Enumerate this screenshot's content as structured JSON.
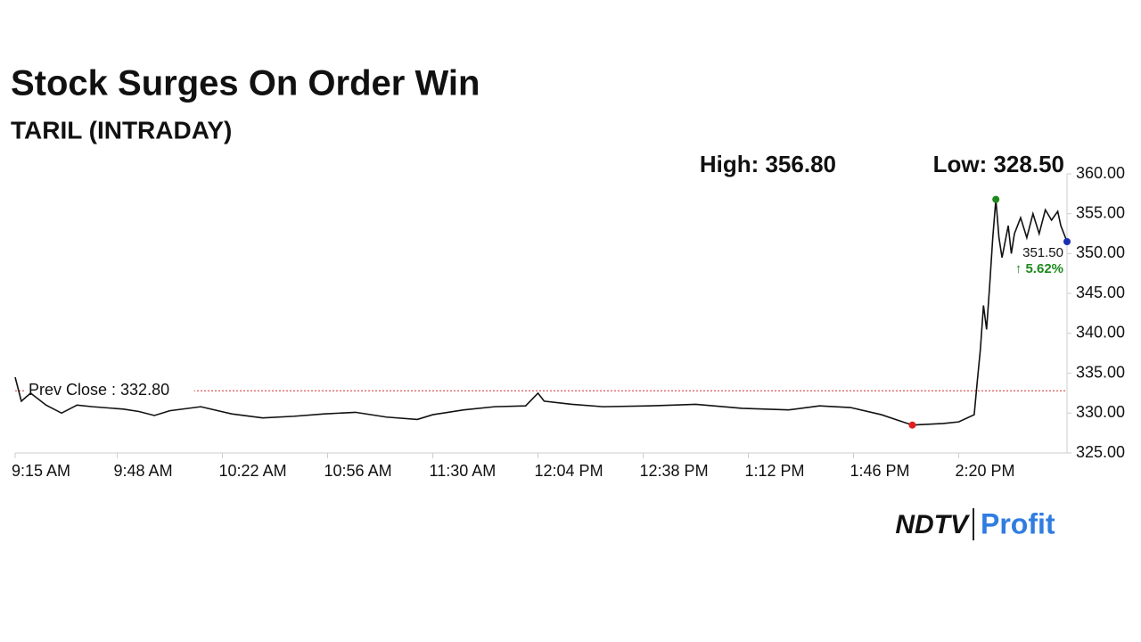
{
  "chart_data": {
    "type": "line",
    "title": "Stock Surges On Order Win",
    "subtitle": "TARIL (INTRADAY)",
    "stats": [
      "High: 356.80",
      "Low: 328.50"
    ],
    "color": "#111111",
    "x": [
      555,
      557,
      560,
      565,
      570,
      575,
      580,
      590,
      595,
      600,
      605,
      615,
      625,
      635,
      645,
      655,
      665,
      675,
      685,
      690,
      700,
      710,
      720,
      724,
      726,
      735,
      745,
      760,
      775,
      790,
      805,
      815,
      825,
      835,
      845,
      855,
      860,
      865,
      866,
      867,
      868,
      869,
      870,
      871,
      872,
      873,
      874,
      876,
      877,
      878,
      880,
      882,
      884,
      886,
      888,
      890,
      892,
      893,
      895
    ],
    "values": [
      334.5,
      331.5,
      332.5,
      331,
      330,
      331,
      330.8,
      330.5,
      330.2,
      329.7,
      330.3,
      330.8,
      329.9,
      329.4,
      329.6,
      329.9,
      330.1,
      329.5,
      329.2,
      329.8,
      330.4,
      330.8,
      330.9,
      332.5,
      331.5,
      331.1,
      330.8,
      330.9,
      331.1,
      330.6,
      330.4,
      330.9,
      330.7,
      329.8,
      328.5,
      328.7,
      328.9,
      329.8,
      334,
      338,
      343.5,
      340.5,
      346,
      352,
      356.8,
      352,
      349.5,
      353.5,
      350,
      352.5,
      354.5,
      352,
      355,
      352.5,
      355.5,
      354.2,
      355.3,
      353.5,
      351.5
    ],
    "xlim": [
      555,
      895
    ],
    "ylim": [
      325,
      360
    ],
    "xticks": [
      {
        "value": 555,
        "label": "9:15 AM"
      },
      {
        "value": 588,
        "label": "9:48 AM"
      },
      {
        "value": 622,
        "label": "10:22 AM"
      },
      {
        "value": 656,
        "label": "10:56 AM"
      },
      {
        "value": 690,
        "label": "11:30 AM"
      },
      {
        "value": 724,
        "label": "12:04 PM"
      },
      {
        "value": 758,
        "label": "12:38 PM"
      },
      {
        "value": 792,
        "label": "1:12 PM"
      },
      {
        "value": 826,
        "label": "1:46 PM"
      },
      {
        "value": 860,
        "label": "2:20 PM"
      }
    ],
    "yticks": [
      {
        "value": 325,
        "label": "325.00"
      },
      {
        "value": 330,
        "label": "330.00"
      },
      {
        "value": 335,
        "label": "335.00"
      },
      {
        "value": 340,
        "label": "340.00"
      },
      {
        "value": 345,
        "label": "345.00"
      },
      {
        "value": 350,
        "label": "350.00"
      },
      {
        "value": 355,
        "label": "355.00"
      },
      {
        "value": 360,
        "label": "360.00"
      }
    ],
    "reference_line": {
      "value": 332.8,
      "label": "Prev Close : 332.80",
      "color": "#d32f2f"
    },
    "last_label": "351.50",
    "change_label": "↑ 5.62%",
    "marker_colors": {
      "high": "#1e8a1e",
      "low": "#e02020",
      "last": "#1a2fb0"
    },
    "brand": [
      "NDTV",
      "Profit"
    ]
  }
}
